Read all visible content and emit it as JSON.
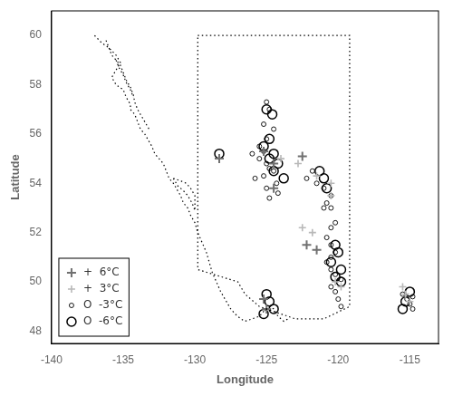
{
  "chart_data": {
    "type": "scatter",
    "xlabel": "Longitude",
    "ylabel": "Latitude",
    "xlim": [
      -140,
      -113
    ],
    "ylim": [
      47.5,
      61
    ],
    "xticks": [
      -140,
      -135,
      -130,
      -125,
      -120,
      -115
    ],
    "yticks": [
      48,
      50,
      52,
      54,
      56,
      58,
      60
    ],
    "grid": false,
    "legend": "lower left",
    "series": [
      {
        "type": "line",
        "color": "black",
        "line_style": "dotted",
        "values": [
          [
            -137.0,
            60.0
          ],
          [
            -136.5,
            59.7
          ],
          [
            -136.0,
            59.5
          ],
          [
            -135.5,
            59.2
          ],
          [
            -135.2,
            58.9
          ],
          [
            -135.5,
            58.6
          ],
          [
            -135.8,
            58.3
          ],
          [
            -135.5,
            58.0
          ],
          [
            -135.0,
            57.8
          ],
          [
            -134.8,
            57.5
          ],
          [
            -134.5,
            57.2
          ],
          [
            -134.5,
            57.0
          ],
          [
            -134.2,
            56.8
          ],
          [
            -134.0,
            56.5
          ],
          [
            -133.8,
            56.2
          ],
          [
            -133.5,
            56.0
          ],
          [
            -133.3,
            55.8
          ],
          [
            -133.0,
            55.5
          ],
          [
            -132.8,
            55.2
          ],
          [
            -132.5,
            55.0
          ],
          [
            -132.2,
            54.8
          ],
          [
            -132.0,
            54.5
          ],
          [
            -131.8,
            54.2
          ],
          [
            -131.5,
            54.0
          ],
          [
            -131.3,
            53.8
          ],
          [
            -131.0,
            53.5
          ],
          [
            -130.8,
            53.2
          ],
          [
            -130.5,
            53.0
          ],
          [
            -130.3,
            52.7
          ],
          [
            -130.0,
            52.4
          ],
          [
            -129.8,
            52.0
          ],
          [
            -129.5,
            51.6
          ],
          [
            -129.2,
            51.2
          ],
          [
            -129.0,
            50.8
          ],
          [
            -128.8,
            50.4
          ],
          [
            -128.5,
            50.0
          ],
          [
            -128.2,
            49.6
          ],
          [
            -127.8,
            49.2
          ],
          [
            -127.5,
            48.9
          ],
          [
            -127.2,
            48.7
          ],
          [
            -126.8,
            48.5
          ],
          [
            -126.5,
            48.4
          ],
          [
            -126.0,
            48.5
          ],
          [
            -125.5,
            48.6
          ],
          [
            -125.2,
            48.8
          ],
          [
            -124.8,
            49.0
          ],
          [
            -124.5,
            48.9
          ],
          [
            -124.2,
            48.6
          ],
          [
            -123.8,
            48.4
          ],
          [
            -123.5,
            48.5
          ]
        ]
      },
      {
        "type": "line",
        "color": "black",
        "line_style": "dotted",
        "values": [
          [
            -136.2,
            59.8
          ],
          [
            -136.0,
            59.5
          ],
          [
            -135.8,
            59.2
          ],
          [
            -135.5,
            59.0
          ],
          [
            -135.2,
            58.8
          ],
          [
            -135.0,
            58.5
          ],
          [
            -134.8,
            58.2
          ],
          [
            -134.5,
            57.9
          ],
          [
            -134.3,
            57.6
          ],
          [
            -134.2,
            57.3
          ],
          [
            -134.0,
            57.0
          ],
          [
            -133.8,
            56.8
          ],
          [
            -133.5,
            56.5
          ],
          [
            -133.2,
            56.2
          ]
        ]
      },
      {
        "type": "line",
        "color": "black",
        "line_style": "dotted",
        "values": [
          [
            -135.5,
            59.0
          ],
          [
            -135.3,
            58.7
          ],
          [
            -135.0,
            58.4
          ],
          [
            -134.8,
            58.1
          ],
          [
            -134.5,
            57.8
          ],
          [
            -134.3,
            57.5
          ]
        ]
      },
      {
        "type": "line",
        "color": "black",
        "line_style": "dotted",
        "values": [
          [
            -131.5,
            54.2
          ],
          [
            -131.2,
            53.9
          ],
          [
            -130.8,
            53.7
          ],
          [
            -130.5,
            53.5
          ],
          [
            -130.2,
            53.2
          ],
          [
            -130.0,
            52.9
          ],
          [
            -130.0,
            53.5
          ],
          [
            -130.3,
            53.8
          ],
          [
            -130.6,
            54.0
          ],
          [
            -131.0,
            54.1
          ],
          [
            -131.5,
            54.2
          ]
        ]
      },
      {
        "type": "line",
        "color": "black",
        "line_style": "dotted",
        "values": [
          [
            -129.8,
            60.0
          ],
          [
            -119.2,
            60.0
          ],
          [
            -119.2,
            49.0
          ],
          [
            -121.0,
            48.5
          ],
          [
            -123.0,
            48.5
          ],
          [
            -125.5,
            49.0
          ],
          [
            -126.5,
            49.5
          ],
          [
            -127.0,
            50.0
          ],
          [
            -129.8,
            50.5
          ],
          [
            -129.8,
            60.0
          ]
        ]
      },
      {
        "name": "+  6°C",
        "type": "scatter",
        "marker": "cross",
        "color": "#707070",
        "values": [
          [
            -128.3,
            55.0
          ],
          [
            -125.2,
            55.3
          ],
          [
            -124.5,
            54.8
          ],
          [
            -122.5,
            55.1
          ],
          [
            -124.5,
            53.8
          ],
          [
            -122.2,
            51.5
          ],
          [
            -121.5,
            51.3
          ],
          [
            -125.2,
            49.3
          ],
          [
            -125.0,
            48.9
          ]
        ]
      },
      {
        "name": "+  3°C",
        "type": "scatter",
        "marker": "cross",
        "color": "#b8b8b8",
        "values": [
          [
            -124.0,
            55.0
          ],
          [
            -122.8,
            54.8
          ],
          [
            -121.5,
            54.3
          ],
          [
            -120.5,
            54.0
          ],
          [
            -122.5,
            52.2
          ],
          [
            -121.8,
            52.0
          ],
          [
            -120.5,
            53.5
          ],
          [
            -119.8,
            49.8
          ],
          [
            -120.2,
            50.0
          ],
          [
            -115.5,
            49.8
          ],
          [
            -115.3,
            49.5
          ],
          [
            -115.0,
            49.2
          ]
        ]
      },
      {
        "name": "O  -3°C",
        "type": "scatter",
        "marker": "circle",
        "color": "black",
        "values": [
          [
            -125.0,
            57.3
          ],
          [
            -124.8,
            57.0
          ],
          [
            -125.2,
            56.4
          ],
          [
            -124.5,
            56.2
          ],
          [
            -125.0,
            55.8
          ],
          [
            -125.5,
            55.5
          ],
          [
            -125.2,
            55.3
          ],
          [
            -126.0,
            55.2
          ],
          [
            -125.5,
            55.0
          ],
          [
            -125.0,
            54.8
          ],
          [
            -124.8,
            54.6
          ],
          [
            -124.5,
            54.5
          ],
          [
            -125.2,
            54.3
          ],
          [
            -125.8,
            54.2
          ],
          [
            -124.3,
            54.0
          ],
          [
            -125.0,
            53.8
          ],
          [
            -124.2,
            53.6
          ],
          [
            -124.8,
            53.4
          ],
          [
            -121.8,
            54.5
          ],
          [
            -122.2,
            54.2
          ],
          [
            -121.5,
            54.0
          ],
          [
            -121.0,
            53.8
          ],
          [
            -120.5,
            53.5
          ],
          [
            -120.8,
            53.2
          ],
          [
            -120.5,
            53.0
          ],
          [
            -121.0,
            53.0
          ],
          [
            -120.2,
            52.4
          ],
          [
            -120.5,
            52.2
          ],
          [
            -120.8,
            51.8
          ],
          [
            -120.5,
            51.5
          ],
          [
            -120.2,
            51.2
          ],
          [
            -120.5,
            51.0
          ],
          [
            -120.8,
            50.8
          ],
          [
            -120.5,
            50.5
          ],
          [
            -120.2,
            50.3
          ],
          [
            -119.8,
            50.1
          ],
          [
            -120.5,
            49.8
          ],
          [
            -120.2,
            49.6
          ],
          [
            -120.0,
            49.3
          ],
          [
            -119.8,
            49.0
          ],
          [
            -115.5,
            49.5
          ],
          [
            -115.2,
            49.3
          ],
          [
            -115.0,
            49.1
          ],
          [
            -114.8,
            49.4
          ],
          [
            -114.8,
            48.9
          ]
        ]
      },
      {
        "name": "O  -6°C",
        "type": "scatter",
        "marker": "circle",
        "color": "black",
        "values": [
          [
            -128.3,
            55.2
          ],
          [
            -125.0,
            57.0
          ],
          [
            -124.6,
            56.8
          ],
          [
            -124.8,
            55.8
          ],
          [
            -125.2,
            55.5
          ],
          [
            -124.5,
            55.2
          ],
          [
            -124.8,
            55.0
          ],
          [
            -124.2,
            54.8
          ],
          [
            -124.5,
            54.5
          ],
          [
            -123.8,
            54.2
          ],
          [
            -121.3,
            54.5
          ],
          [
            -121.0,
            54.2
          ],
          [
            -120.8,
            53.8
          ],
          [
            -120.2,
            51.5
          ],
          [
            -120.0,
            51.2
          ],
          [
            -120.5,
            50.8
          ],
          [
            -119.8,
            50.5
          ],
          [
            -120.2,
            50.2
          ],
          [
            -119.8,
            50.0
          ],
          [
            -125.0,
            49.5
          ],
          [
            -124.8,
            49.2
          ],
          [
            -124.5,
            48.9
          ],
          [
            -125.2,
            48.7
          ],
          [
            -115.0,
            49.6
          ],
          [
            -115.3,
            49.2
          ],
          [
            -115.5,
            48.9
          ]
        ]
      }
    ]
  }
}
